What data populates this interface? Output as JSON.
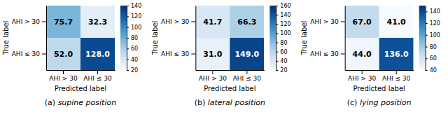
{
  "chart_data": [
    {
      "type": "heatmap",
      "title": "(a) supine position",
      "xlabel": "Predicted label",
      "ylabel": "True label",
      "x": [
        "AHI > 30",
        "AHI ≤ 30"
      ],
      "y": [
        "AHI > 30",
        "AHI ≤ 30"
      ],
      "values": [
        [
          75.7,
          32.3
        ],
        [
          52.0,
          128.0
        ]
      ],
      "value_labels": [
        [
          "75.7",
          "32.3"
        ],
        [
          "52.0",
          "128.0"
        ]
      ],
      "data_labels": true,
      "color_range": [
        20,
        140
      ],
      "color_ticks": [
        20,
        40,
        60,
        80,
        100,
        120,
        140
      ]
    },
    {
      "type": "heatmap",
      "title": "(b) lateral position",
      "xlabel": "Predicted label",
      "ylabel": "True label",
      "x": [
        "AHI > 30",
        "AHI ≤ 30"
      ],
      "y": [
        "AHI > 30",
        "AHI ≤ 30"
      ],
      "values": [
        [
          41.7,
          66.3
        ],
        [
          31.0,
          149.0
        ]
      ],
      "value_labels": [
        [
          "41.7",
          "66.3"
        ],
        [
          "31.0",
          "149.0"
        ]
      ],
      "data_labels": true,
      "color_range": [
        20,
        160
      ],
      "color_ticks": [
        20,
        40,
        60,
        80,
        100,
        120,
        140,
        160
      ]
    },
    {
      "type": "heatmap",
      "title": "(c) lying position",
      "xlabel": "Predicted label",
      "ylabel": "True label",
      "x": [
        "AHI > 30",
        "AHI ≤ 30"
      ],
      "y": [
        "AHI > 30",
        "AHI ≤ 30"
      ],
      "values": [
        [
          67.0,
          41.0
        ],
        [
          44.0,
          136.0
        ]
      ],
      "value_labels": [
        [
          "67.0",
          "41.0"
        ],
        [
          "44.0",
          "136.0"
        ]
      ],
      "data_labels": true,
      "color_range": [
        40,
        150
      ],
      "color_ticks": [
        40,
        60,
        80,
        100,
        120,
        140
      ]
    }
  ]
}
